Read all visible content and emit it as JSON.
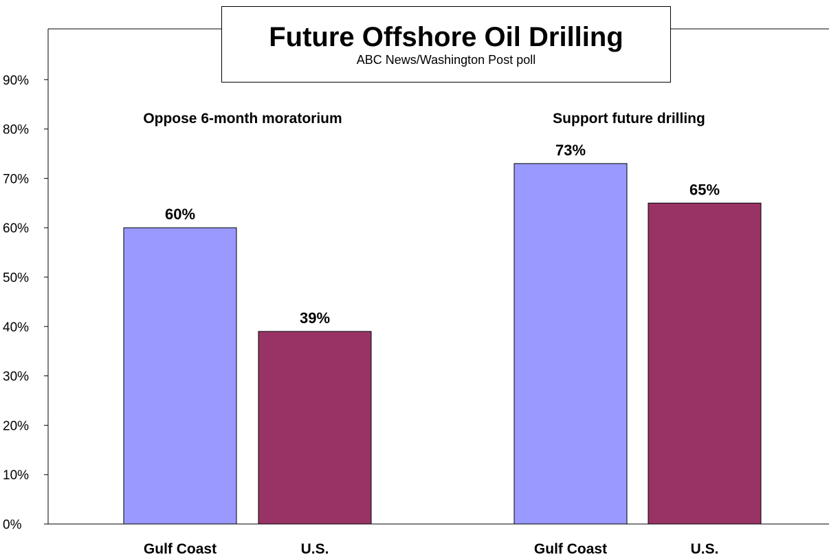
{
  "chart_data": {
    "type": "bar",
    "title": "Future Offshore Oil Drilling",
    "subtitle": "ABC News/Washington Post poll",
    "ylim": [
      0,
      100
    ],
    "y_ticks": [
      "0%",
      "10%",
      "20%",
      "30%",
      "40%",
      "50%",
      "60%",
      "70%",
      "80%",
      "90%"
    ],
    "y_tick_values": [
      0,
      10,
      20,
      30,
      40,
      50,
      60,
      70,
      80,
      90
    ],
    "grid": false,
    "groups": [
      {
        "label": "Oppose 6-month moratorium",
        "categories": [
          "Gulf Coast",
          "U.S."
        ],
        "values": [
          60,
          39
        ],
        "data_labels": [
          "60%",
          "39%"
        ]
      },
      {
        "label": "Support future drilling",
        "categories": [
          "Gulf Coast",
          "U.S."
        ],
        "values": [
          73,
          65
        ],
        "data_labels": [
          "73%",
          "65%"
        ]
      }
    ],
    "colors": {
      "Gulf Coast": "#9999ff",
      "U.S.": "#993366"
    }
  }
}
